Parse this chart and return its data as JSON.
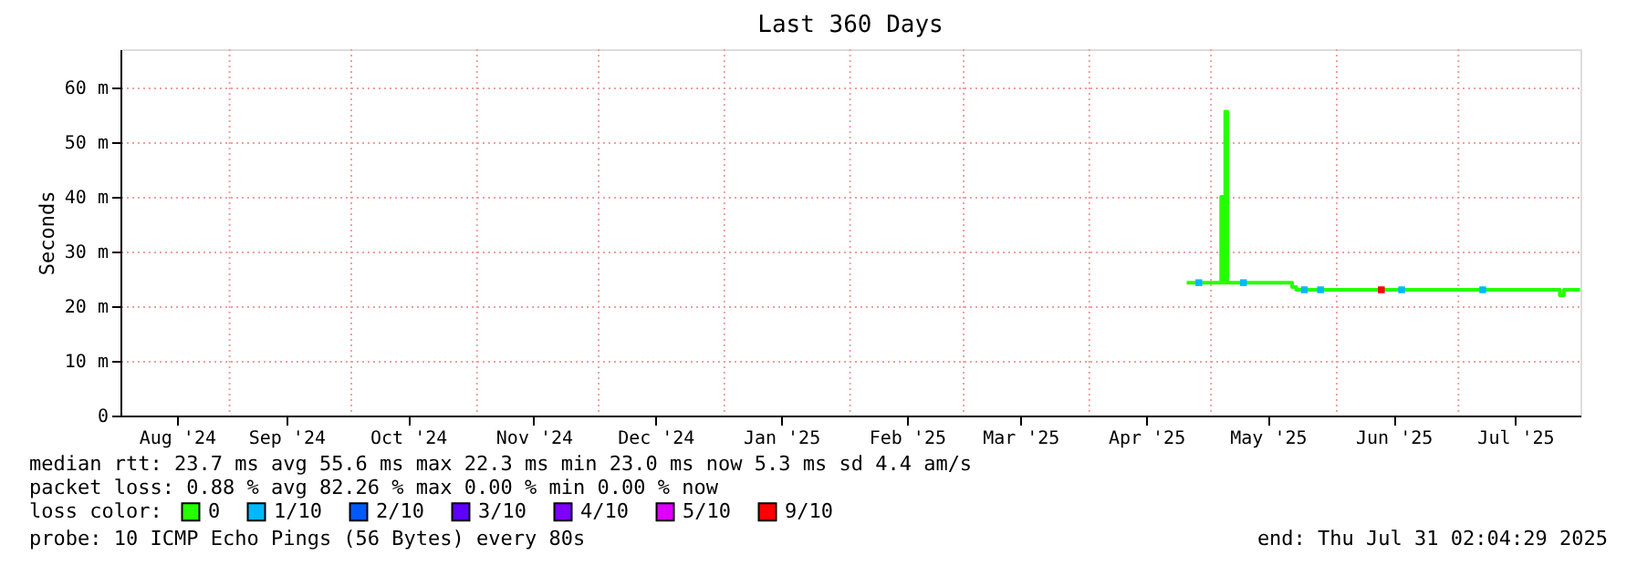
{
  "chart_data": {
    "type": "line",
    "title": "Last 360 Days",
    "ylabel": "Seconds",
    "legend_title": "loss color:",
    "legend": "bottom",
    "grid": "y",
    "marker": "none",
    "xlim": [
      "2024-08-05T02:04",
      "2025-07-31T02:04"
    ],
    "xticks": [
      {
        "value": "2024-08-19",
        "label": "Aug '24"
      },
      {
        "value": "2024-09-15",
        "label": "Sep '24"
      },
      {
        "value": "2024-10-15",
        "label": "Oct '24"
      },
      {
        "value": "2024-11-15",
        "label": "Nov '24"
      },
      {
        "value": "2024-12-15",
        "label": "Dec '24"
      },
      {
        "value": "2025-01-15",
        "label": "Jan '25"
      },
      {
        "value": "2025-02-15",
        "label": "Feb '25"
      },
      {
        "value": "2025-03-15",
        "label": "Mar '25"
      },
      {
        "value": "2025-04-15",
        "label": "Apr '25"
      },
      {
        "value": "2025-05-15",
        "label": "May '25"
      },
      {
        "value": "2025-06-15",
        "label": "Jun '25"
      },
      {
        "value": "2025-07-15",
        "label": "Jul '25"
      }
    ],
    "ylim": [
      0,
      67
    ],
    "yticks": [
      0,
      {
        "value": 10,
        "label": "10 m"
      },
      {
        "value": 20,
        "label": "20 m"
      },
      {
        "value": 30,
        "label": "30 m"
      },
      {
        "value": 40,
        "label": "40 m"
      },
      {
        "value": 50,
        "label": "50 m"
      },
      {
        "value": 60,
        "label": "60 m"
      }
    ],
    "series": [
      {
        "name": "0",
        "color": "#26ff00",
        "x": [
          "2025-04-25",
          "2025-05-01",
          "2025-05-03",
          "2025-05-03T12:00",
          "2025-05-04",
          "2025-05-04T12:00",
          "2025-05-05",
          "2025-05-10",
          "2025-05-15",
          "2025-05-20",
          "2025-05-21",
          "2025-05-22",
          "2025-06-01",
          "2025-06-15",
          "2025-07-01",
          "2025-07-15",
          "2025-07-25",
          "2025-07-26",
          "2025-07-27",
          "2025-07-31"
        ],
        "values": [
          24.3,
          24.3,
          24.3,
          40,
          24.3,
          55.6,
          24.3,
          24.3,
          24.3,
          24.3,
          23.5,
          23,
          23,
          23,
          23,
          23,
          23,
          22,
          23,
          23
        ]
      },
      {
        "name": "1/10",
        "color": "#00b8ff",
        "type": "scatter",
        "marker": "square",
        "x": [
          "2025-04-28",
          "2025-05-09",
          "2025-05-24",
          "2025-05-28",
          "2025-06-17",
          "2025-07-07"
        ],
        "values": [
          24.3,
          24.3,
          23,
          23,
          23,
          23
        ]
      },
      {
        "name": "2/10",
        "color": "#0059ff",
        "type": "scatter"
      },
      {
        "name": "3/10",
        "color": "#5e00ff",
        "type": "scatter"
      },
      {
        "name": "4/10",
        "color": "#7e00ff",
        "type": "scatter"
      },
      {
        "name": "5/10",
        "color": "#dd00ff",
        "type": "scatter"
      },
      {
        "name": "9/10",
        "color": "#ff0000",
        "type": "scatter",
        "marker": "square",
        "x": [
          "2025-06-12"
        ],
        "values": [
          23
        ]
      }
    ],
    "ref_lines": [
      {
        "axis": "x",
        "value": "2024-09-01",
        "color": "#f0a0a0",
        "line_style": "dotted"
      },
      {
        "axis": "x",
        "value": "2024-10-01",
        "color": "#f0a0a0",
        "line_style": "dotted"
      },
      {
        "axis": "x",
        "value": "2024-11-01",
        "color": "#f0a0a0",
        "line_style": "dotted"
      },
      {
        "axis": "x",
        "value": "2024-12-01",
        "color": "#f0a0a0",
        "line_style": "dotted"
      },
      {
        "axis": "x",
        "value": "2025-01-01",
        "color": "#f0a0a0",
        "line_style": "dotted"
      },
      {
        "axis": "x",
        "value": "2025-02-01",
        "color": "#f0a0a0",
        "line_style": "dotted"
      },
      {
        "axis": "x",
        "value": "2025-03-01",
        "color": "#f0a0a0",
        "line_style": "dotted"
      },
      {
        "axis": "x",
        "value": "2025-04-01",
        "color": "#f0a0a0",
        "line_style": "dotted"
      },
      {
        "axis": "x",
        "value": "2025-05-01",
        "color": "#f0a0a0",
        "line_style": "dotted"
      },
      {
        "axis": "x",
        "value": "2025-06-01",
        "color": "#f0a0a0",
        "line_style": "dotted"
      },
      {
        "axis": "x",
        "value": "2025-07-01",
        "color": "#f0a0a0",
        "line_style": "dotted"
      }
    ],
    "annotations": [
      "median rtt:  23.7 ms avg  55.6 ms max  22.3 ms min  23.0 ms now  5.3 ms sd  4.4   am/s",
      "packet loss: 0.88 % avg  82.26 % max  0.00 % min  0.00 % now",
      "probe:       10 ICMP Echo Pings (56 Bytes) every 80s",
      "end: Thu Jul 31 02:04:29 2025"
    ]
  }
}
